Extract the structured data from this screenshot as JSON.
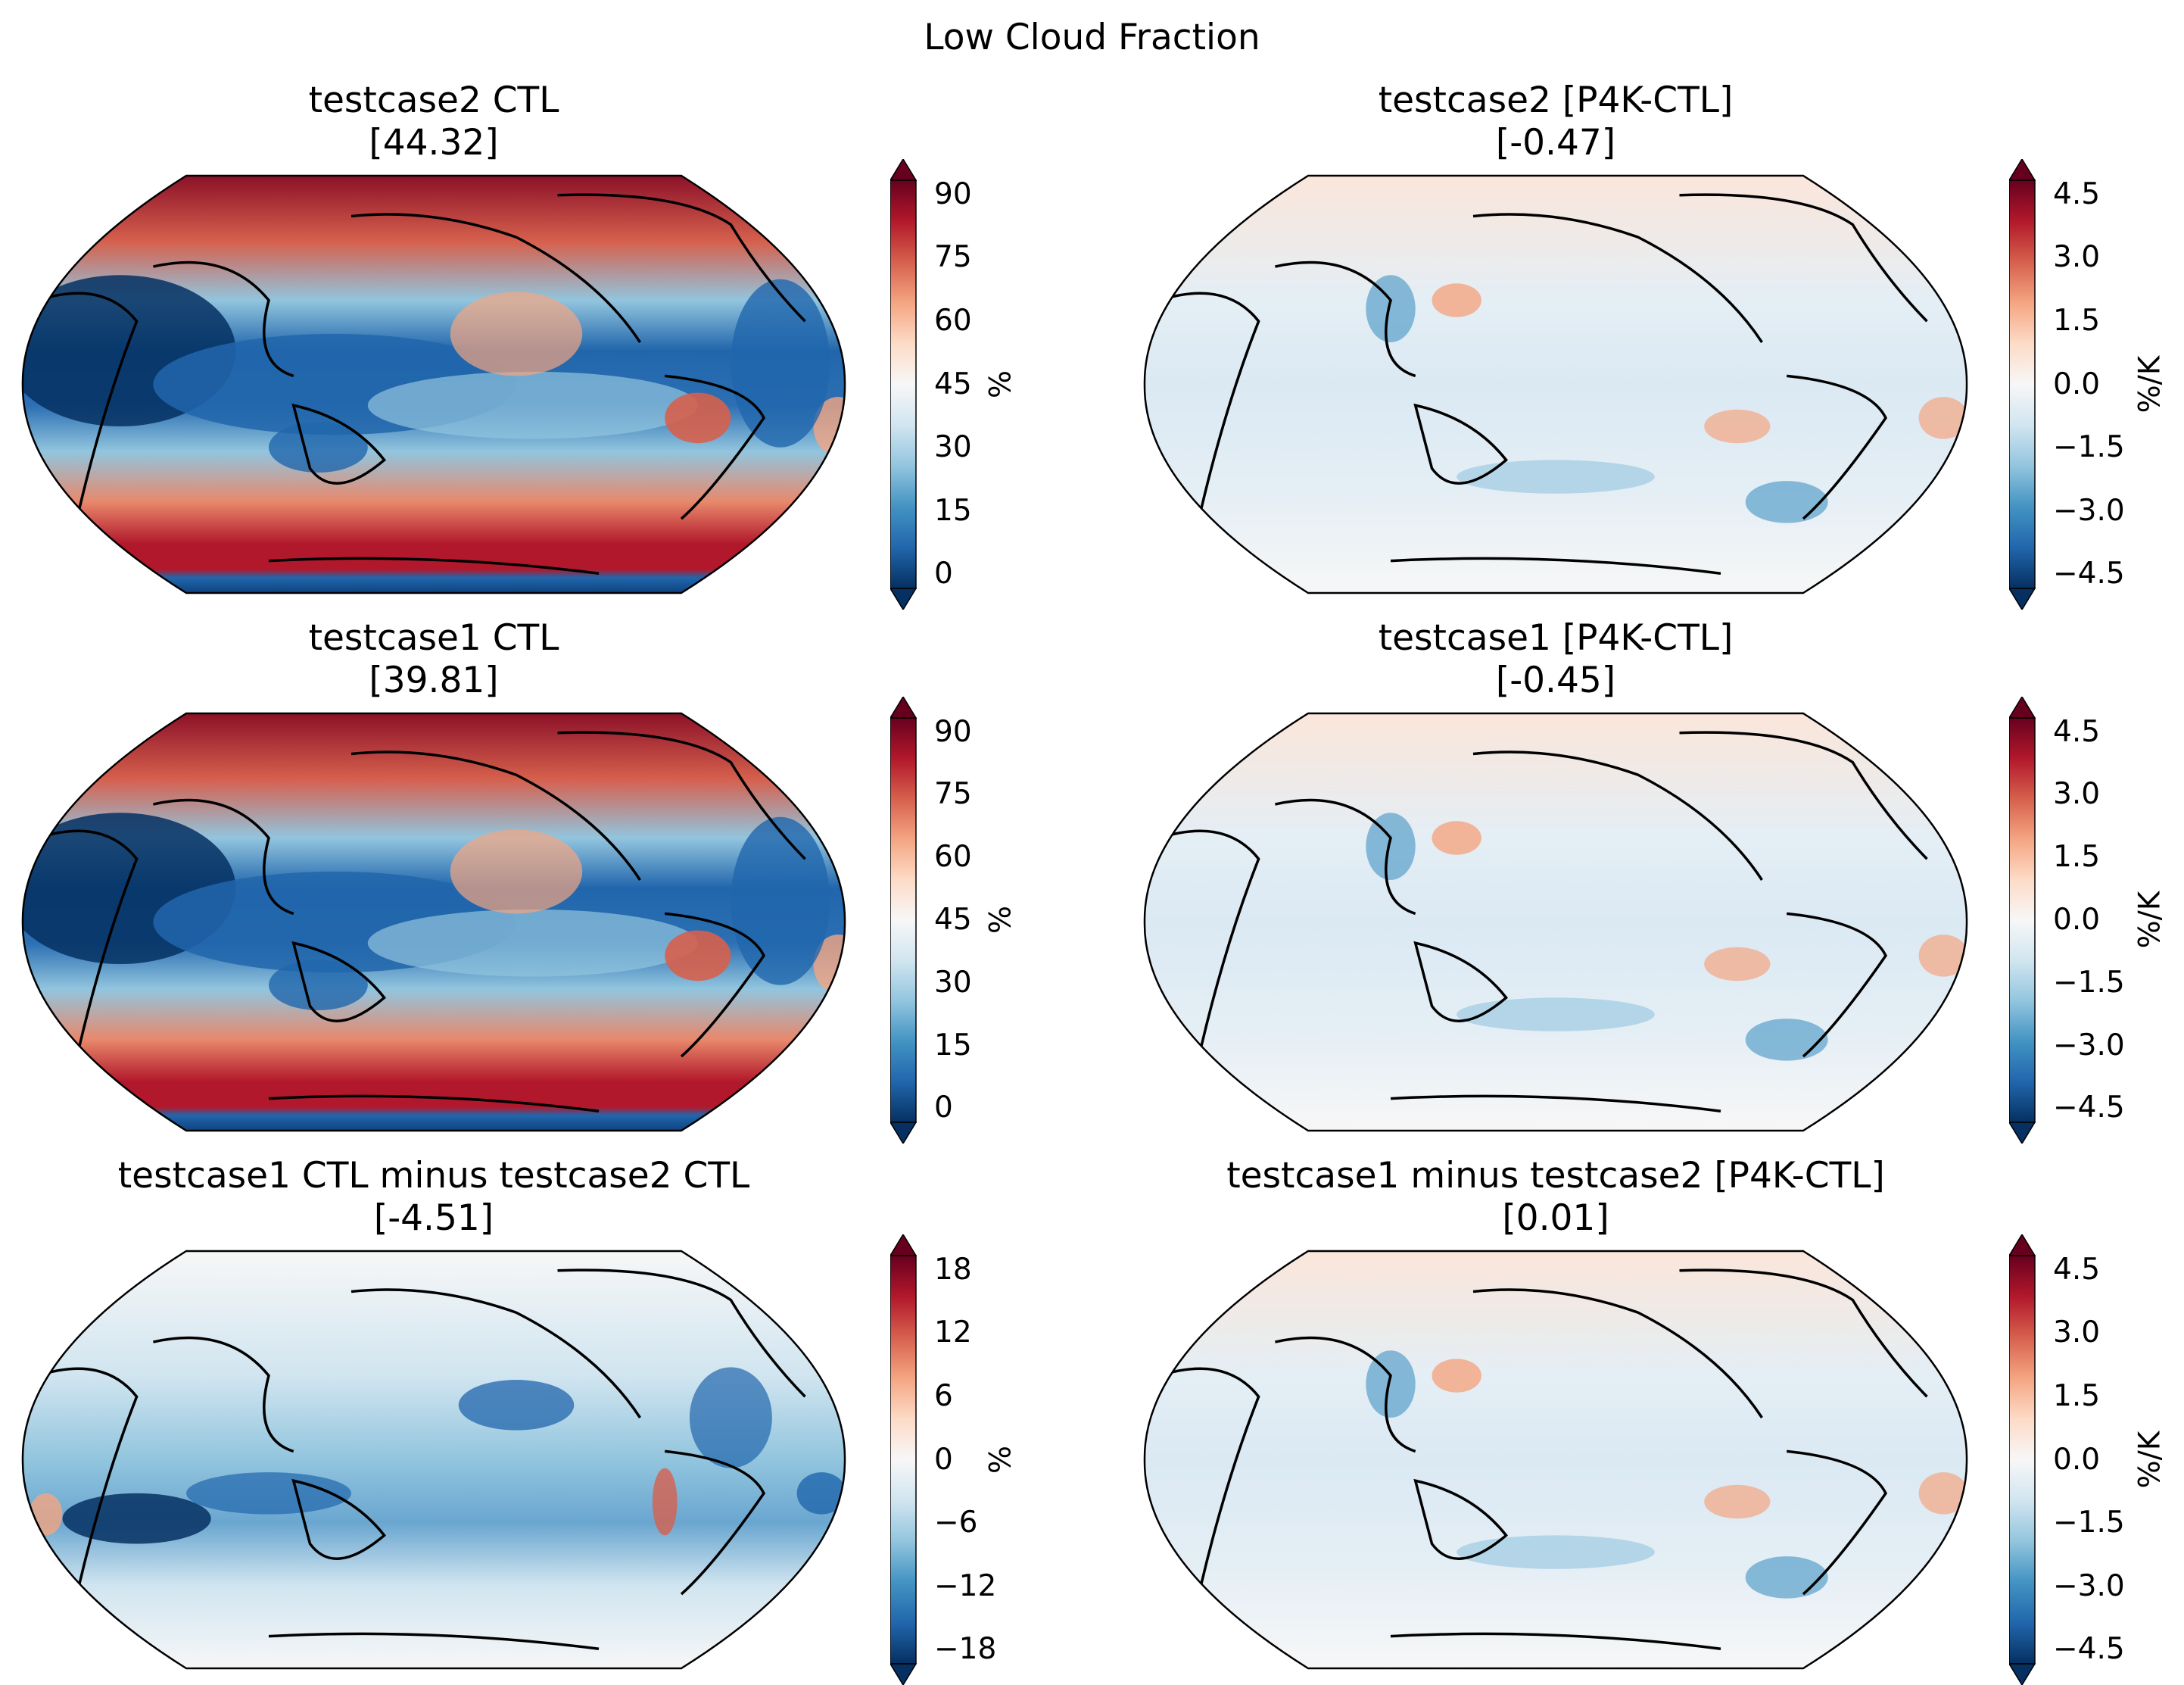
{
  "suptitle": "Low Cloud Fraction",
  "panels": [
    {
      "title": "testcase2 CTL",
      "mean": "[44.32]",
      "colorbar": {
        "units": "%",
        "ticks": [
          "0",
          "15",
          "30",
          "45",
          "60",
          "75",
          "90"
        ]
      }
    },
    {
      "title": "testcase2 [P4K-CTL]",
      "mean": "[-0.47]",
      "colorbar": {
        "units": "%/K",
        "ticks": [
          "−4.5",
          "−3.0",
          "−1.5",
          "0.0",
          "1.5",
          "3.0",
          "4.5"
        ]
      }
    },
    {
      "title": "testcase1 CTL",
      "mean": "[39.81]",
      "colorbar": {
        "units": "%",
        "ticks": [
          "0",
          "15",
          "30",
          "45",
          "60",
          "75",
          "90"
        ]
      }
    },
    {
      "title": "testcase1 [P4K-CTL]",
      "mean": "[-0.45]",
      "colorbar": {
        "units": "%/K",
        "ticks": [
          "−4.5",
          "−3.0",
          "−1.5",
          "0.0",
          "1.5",
          "3.0",
          "4.5"
        ]
      }
    },
    {
      "title": "testcase1 CTL minus testcase2 CTL",
      "mean": "[-4.51]",
      "colorbar": {
        "units": "%",
        "ticks": [
          "−18",
          "−12",
          "−6",
          "0",
          "6",
          "12",
          "18"
        ]
      }
    },
    {
      "title": "testcase1 minus testcase2 [P4K-CTL]",
      "mean": "[0.01]",
      "colorbar": {
        "units": "%/K",
        "ticks": [
          "−4.5",
          "−3.0",
          "−1.5",
          "0.0",
          "1.5",
          "3.0",
          "4.5"
        ]
      }
    }
  ],
  "colors": {
    "rdbu": [
      "#053061",
      "#2166ac",
      "#4393c3",
      "#92c5de",
      "#d1e5f0",
      "#f7f7f7",
      "#fddbc7",
      "#f4a582",
      "#d6604d",
      "#b2182b",
      "#67001f"
    ]
  }
}
